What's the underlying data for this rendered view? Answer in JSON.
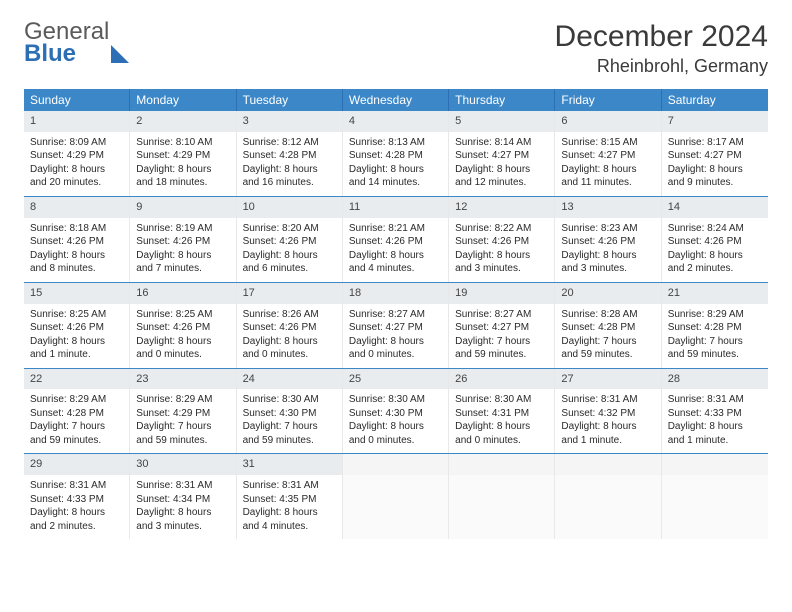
{
  "brand": {
    "part1": "General",
    "part2": "Blue"
  },
  "title": {
    "month": "December 2024",
    "location": "Rheinbrohl, Germany"
  },
  "colors": {
    "header_bg": "#3b87c8",
    "header_text": "#ffffff",
    "daynum_bg": "#e9ecef",
    "border": "#3b87c8",
    "brand_blue": "#2d6fb5"
  },
  "daynames": [
    "Sunday",
    "Monday",
    "Tuesday",
    "Wednesday",
    "Thursday",
    "Friday",
    "Saturday"
  ],
  "days": [
    {
      "n": "1",
      "sunrise": "8:09 AM",
      "sunset": "4:29 PM",
      "daylight": "8 hours and 20 minutes."
    },
    {
      "n": "2",
      "sunrise": "8:10 AM",
      "sunset": "4:29 PM",
      "daylight": "8 hours and 18 minutes."
    },
    {
      "n": "3",
      "sunrise": "8:12 AM",
      "sunset": "4:28 PM",
      "daylight": "8 hours and 16 minutes."
    },
    {
      "n": "4",
      "sunrise": "8:13 AM",
      "sunset": "4:28 PM",
      "daylight": "8 hours and 14 minutes."
    },
    {
      "n": "5",
      "sunrise": "8:14 AM",
      "sunset": "4:27 PM",
      "daylight": "8 hours and 12 minutes."
    },
    {
      "n": "6",
      "sunrise": "8:15 AM",
      "sunset": "4:27 PM",
      "daylight": "8 hours and 11 minutes."
    },
    {
      "n": "7",
      "sunrise": "8:17 AM",
      "sunset": "4:27 PM",
      "daylight": "8 hours and 9 minutes."
    },
    {
      "n": "8",
      "sunrise": "8:18 AM",
      "sunset": "4:26 PM",
      "daylight": "8 hours and 8 minutes."
    },
    {
      "n": "9",
      "sunrise": "8:19 AM",
      "sunset": "4:26 PM",
      "daylight": "8 hours and 7 minutes."
    },
    {
      "n": "10",
      "sunrise": "8:20 AM",
      "sunset": "4:26 PM",
      "daylight": "8 hours and 6 minutes."
    },
    {
      "n": "11",
      "sunrise": "8:21 AM",
      "sunset": "4:26 PM",
      "daylight": "8 hours and 4 minutes."
    },
    {
      "n": "12",
      "sunrise": "8:22 AM",
      "sunset": "4:26 PM",
      "daylight": "8 hours and 3 minutes."
    },
    {
      "n": "13",
      "sunrise": "8:23 AM",
      "sunset": "4:26 PM",
      "daylight": "8 hours and 3 minutes."
    },
    {
      "n": "14",
      "sunrise": "8:24 AM",
      "sunset": "4:26 PM",
      "daylight": "8 hours and 2 minutes."
    },
    {
      "n": "15",
      "sunrise": "8:25 AM",
      "sunset": "4:26 PM",
      "daylight": "8 hours and 1 minute."
    },
    {
      "n": "16",
      "sunrise": "8:25 AM",
      "sunset": "4:26 PM",
      "daylight": "8 hours and 0 minutes."
    },
    {
      "n": "17",
      "sunrise": "8:26 AM",
      "sunset": "4:26 PM",
      "daylight": "8 hours and 0 minutes."
    },
    {
      "n": "18",
      "sunrise": "8:27 AM",
      "sunset": "4:27 PM",
      "daylight": "8 hours and 0 minutes."
    },
    {
      "n": "19",
      "sunrise": "8:27 AM",
      "sunset": "4:27 PM",
      "daylight": "7 hours and 59 minutes."
    },
    {
      "n": "20",
      "sunrise": "8:28 AM",
      "sunset": "4:28 PM",
      "daylight": "7 hours and 59 minutes."
    },
    {
      "n": "21",
      "sunrise": "8:29 AM",
      "sunset": "4:28 PM",
      "daylight": "7 hours and 59 minutes."
    },
    {
      "n": "22",
      "sunrise": "8:29 AM",
      "sunset": "4:28 PM",
      "daylight": "7 hours and 59 minutes."
    },
    {
      "n": "23",
      "sunrise": "8:29 AM",
      "sunset": "4:29 PM",
      "daylight": "7 hours and 59 minutes."
    },
    {
      "n": "24",
      "sunrise": "8:30 AM",
      "sunset": "4:30 PM",
      "daylight": "7 hours and 59 minutes."
    },
    {
      "n": "25",
      "sunrise": "8:30 AM",
      "sunset": "4:30 PM",
      "daylight": "8 hours and 0 minutes."
    },
    {
      "n": "26",
      "sunrise": "8:30 AM",
      "sunset": "4:31 PM",
      "daylight": "8 hours and 0 minutes."
    },
    {
      "n": "27",
      "sunrise": "8:31 AM",
      "sunset": "4:32 PM",
      "daylight": "8 hours and 1 minute."
    },
    {
      "n": "28",
      "sunrise": "8:31 AM",
      "sunset": "4:33 PM",
      "daylight": "8 hours and 1 minute."
    },
    {
      "n": "29",
      "sunrise": "8:31 AM",
      "sunset": "4:33 PM",
      "daylight": "8 hours and 2 minutes."
    },
    {
      "n": "30",
      "sunrise": "8:31 AM",
      "sunset": "4:34 PM",
      "daylight": "8 hours and 3 minutes."
    },
    {
      "n": "31",
      "sunrise": "8:31 AM",
      "sunset": "4:35 PM",
      "daylight": "8 hours and 4 minutes."
    }
  ],
  "labels": {
    "sunrise": "Sunrise:",
    "sunset": "Sunset:",
    "daylight": "Daylight:"
  },
  "layout": {
    "trailing_empty": 4
  }
}
